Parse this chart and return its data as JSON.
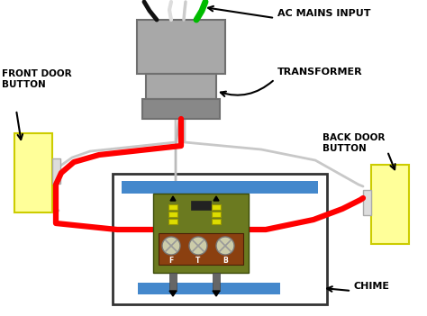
{
  "bg_color": "#ffffff",
  "labels": {
    "front_door": "FRONT DOOR\nBUTTON",
    "back_door": "BACK DOOR\nBUTTON",
    "transformer": "TRANSFORMER",
    "ac_mains": "AC MAINS INPUT",
    "chime": "CHIME"
  },
  "colors": {
    "yellow_button": "#FFFF99",
    "yellow_button_edge": "#CCCC00",
    "gray_transformer": "#A8A8A8",
    "gray_transformer_edge": "#707070",
    "gray_transformer2": "#888888",
    "red_wire": "#FF0000",
    "white_wire": "#C8C8C8",
    "green_wire": "#00BB00",
    "black_wire": "#111111",
    "chime_box": "#ffffff",
    "chime_box_edge": "#333333",
    "chime_board": "#6B7A20",
    "chime_terminal": "#8B4010",
    "chime_blue_bar": "#4488CC",
    "text_color": "#000000",
    "arrow_color": "#000000",
    "screw_face": "#CCCCAA",
    "spring_yellow": "#DDDD00",
    "pin_gray": "#666666"
  }
}
